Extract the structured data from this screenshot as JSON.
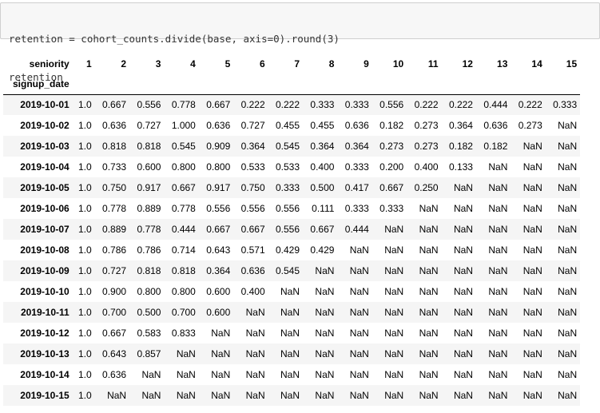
{
  "code_cell": {
    "lines": [
      "retention = cohort_counts.divide(base, axis=0).round(3)",
      "retention"
    ]
  },
  "dataframe": {
    "columns_name": "seniority",
    "index_name": "signup_date",
    "columns": [
      "1",
      "2",
      "3",
      "4",
      "5",
      "6",
      "7",
      "8",
      "9",
      "10",
      "11",
      "12",
      "13",
      "14",
      "15"
    ],
    "rows": [
      {
        "index": "2019-10-01",
        "values": [
          "1.0",
          "0.667",
          "0.556",
          "0.778",
          "0.667",
          "0.222",
          "0.222",
          "0.333",
          "0.333",
          "0.556",
          "0.222",
          "0.222",
          "0.444",
          "0.222",
          "0.333"
        ]
      },
      {
        "index": "2019-10-02",
        "values": [
          "1.0",
          "0.636",
          "0.727",
          "1.000",
          "0.636",
          "0.727",
          "0.455",
          "0.455",
          "0.636",
          "0.182",
          "0.273",
          "0.364",
          "0.636",
          "0.273",
          "NaN"
        ]
      },
      {
        "index": "2019-10-03",
        "values": [
          "1.0",
          "0.818",
          "0.818",
          "0.545",
          "0.909",
          "0.364",
          "0.545",
          "0.364",
          "0.364",
          "0.273",
          "0.273",
          "0.182",
          "0.182",
          "NaN",
          "NaN"
        ]
      },
      {
        "index": "2019-10-04",
        "values": [
          "1.0",
          "0.733",
          "0.600",
          "0.800",
          "0.800",
          "0.533",
          "0.533",
          "0.400",
          "0.333",
          "0.200",
          "0.400",
          "0.133",
          "NaN",
          "NaN",
          "NaN"
        ]
      },
      {
        "index": "2019-10-05",
        "values": [
          "1.0",
          "0.750",
          "0.917",
          "0.667",
          "0.917",
          "0.750",
          "0.333",
          "0.500",
          "0.417",
          "0.667",
          "0.250",
          "NaN",
          "NaN",
          "NaN",
          "NaN"
        ]
      },
      {
        "index": "2019-10-06",
        "values": [
          "1.0",
          "0.778",
          "0.889",
          "0.778",
          "0.556",
          "0.556",
          "0.556",
          "0.111",
          "0.333",
          "0.333",
          "NaN",
          "NaN",
          "NaN",
          "NaN",
          "NaN"
        ]
      },
      {
        "index": "2019-10-07",
        "values": [
          "1.0",
          "0.889",
          "0.778",
          "0.444",
          "0.667",
          "0.667",
          "0.556",
          "0.667",
          "0.444",
          "NaN",
          "NaN",
          "NaN",
          "NaN",
          "NaN",
          "NaN"
        ]
      },
      {
        "index": "2019-10-08",
        "values": [
          "1.0",
          "0.786",
          "0.786",
          "0.714",
          "0.643",
          "0.571",
          "0.429",
          "0.429",
          "NaN",
          "NaN",
          "NaN",
          "NaN",
          "NaN",
          "NaN",
          "NaN"
        ]
      },
      {
        "index": "2019-10-09",
        "values": [
          "1.0",
          "0.727",
          "0.818",
          "0.818",
          "0.364",
          "0.636",
          "0.545",
          "NaN",
          "NaN",
          "NaN",
          "NaN",
          "NaN",
          "NaN",
          "NaN",
          "NaN"
        ]
      },
      {
        "index": "2019-10-10",
        "values": [
          "1.0",
          "0.900",
          "0.800",
          "0.800",
          "0.600",
          "0.400",
          "NaN",
          "NaN",
          "NaN",
          "NaN",
          "NaN",
          "NaN",
          "NaN",
          "NaN",
          "NaN"
        ]
      },
      {
        "index": "2019-10-11",
        "values": [
          "1.0",
          "0.700",
          "0.500",
          "0.700",
          "0.600",
          "NaN",
          "NaN",
          "NaN",
          "NaN",
          "NaN",
          "NaN",
          "NaN",
          "NaN",
          "NaN",
          "NaN"
        ]
      },
      {
        "index": "2019-10-12",
        "values": [
          "1.0",
          "0.667",
          "0.583",
          "0.833",
          "NaN",
          "NaN",
          "NaN",
          "NaN",
          "NaN",
          "NaN",
          "NaN",
          "NaN",
          "NaN",
          "NaN",
          "NaN"
        ]
      },
      {
        "index": "2019-10-13",
        "values": [
          "1.0",
          "0.643",
          "0.857",
          "NaN",
          "NaN",
          "NaN",
          "NaN",
          "NaN",
          "NaN",
          "NaN",
          "NaN",
          "NaN",
          "NaN",
          "NaN",
          "NaN"
        ]
      },
      {
        "index": "2019-10-14",
        "values": [
          "1.0",
          "0.636",
          "NaN",
          "NaN",
          "NaN",
          "NaN",
          "NaN",
          "NaN",
          "NaN",
          "NaN",
          "NaN",
          "NaN",
          "NaN",
          "NaN",
          "NaN"
        ]
      },
      {
        "index": "2019-10-15",
        "values": [
          "1.0",
          "NaN",
          "NaN",
          "NaN",
          "NaN",
          "NaN",
          "NaN",
          "NaN",
          "NaN",
          "NaN",
          "NaN",
          "NaN",
          "NaN",
          "NaN",
          "NaN"
        ]
      }
    ]
  }
}
